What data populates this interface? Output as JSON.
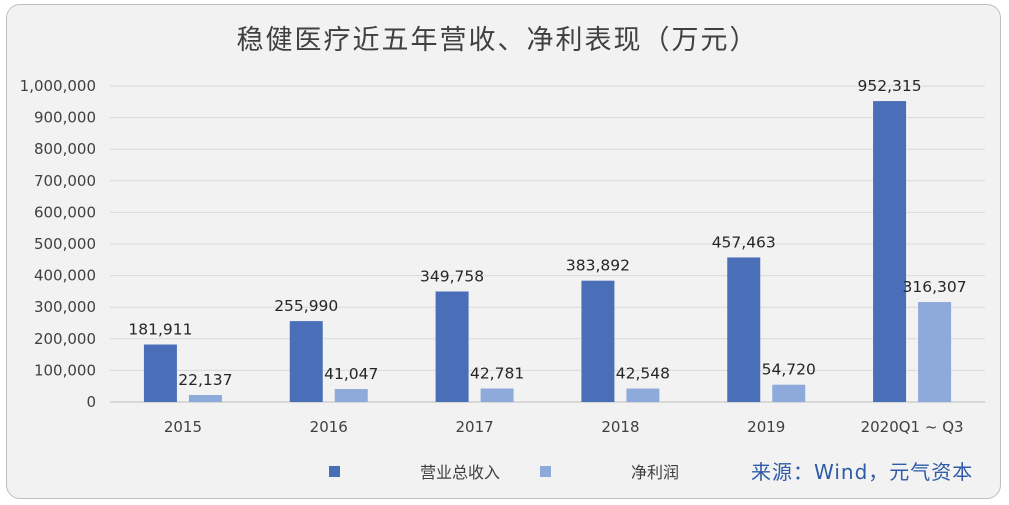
{
  "chart_data": {
    "type": "bar",
    "title": "稳健医疗近五年营收、净利表现（万元）",
    "categories": [
      "2015",
      "2016",
      "2017",
      "2018",
      "2019",
      "2020Q1 ~ Q3"
    ],
    "series": [
      {
        "name": "营业总收入",
        "color": "#4a6fb8",
        "values": [
          181911,
          255990,
          349758,
          383892,
          457463,
          952315
        ],
        "labels": [
          "181,911",
          "255,990",
          "349,758",
          "383,892",
          "457,463",
          "952,315"
        ]
      },
      {
        "name": "净利润",
        "color": "#8eaadb",
        "values": [
          22137,
          41047,
          42781,
          42548,
          54720,
          316307
        ],
        "labels": [
          "22,137",
          "41,047",
          "42,781",
          "42,548",
          "54,720",
          "316,307"
        ]
      }
    ],
    "ylim": [
      0,
      1000000
    ],
    "yticks": [
      "0",
      "100,000",
      "200,000",
      "300,000",
      "400,000",
      "500,000",
      "600,000",
      "700,000",
      "800,000",
      "900,000",
      "1,000,000"
    ],
    "grid": true,
    "legend_position": "bottom"
  },
  "source": "来源：Wind，元气资本"
}
